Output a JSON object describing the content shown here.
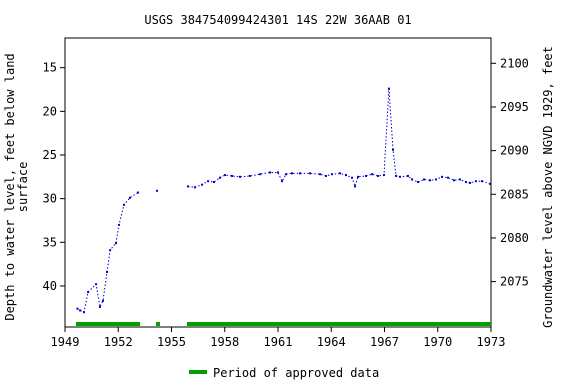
{
  "chart_data": {
    "type": "line",
    "title": "USGS 384754099424301 14S 22W 36AAB 01",
    "ylabel_lines": [
      "Depth to water level, feet below land",
      "surface"
    ],
    "y2label": "Groundwater level above NGVD 1929, feet",
    "x": [
      1949.7,
      1949.85,
      1950.07,
      1950.3,
      1950.75,
      1950.97,
      1951.14,
      1951.37,
      1951.54,
      1951.87,
      1952.04,
      1952.32,
      1952.66,
      1953.11,
      null,
      1954.18,
      null,
      1955.93,
      1956.32,
      1956.72,
      1957.06,
      1957.39,
      1957.73,
      1958.01,
      1958.41,
      1958.86,
      1959.42,
      1959.99,
      1960.55,
      1961.0,
      1961.23,
      1961.45,
      1961.79,
      1962.24,
      1962.8,
      1963.37,
      1963.7,
      1964.04,
      1964.49,
      1964.83,
      1965.17,
      1965.34,
      1965.51,
      1965.96,
      1966.3,
      1966.63,
      1966.97,
      1967.25,
      1967.48,
      1967.65,
      1967.87,
      1968.32,
      1968.55,
      1968.89,
      1969.23,
      1969.56,
      1969.9,
      1970.24,
      1970.58,
      1970.92,
      1971.25,
      1971.59,
      1971.82,
      1972.15,
      1972.49,
      1972.94
    ],
    "series": [
      {
        "color": "#0000cc",
        "values": [
          42.6,
          42.8,
          43.0,
          40.7,
          39.8,
          42.4,
          41.7,
          38.4,
          35.9,
          35.1,
          33.0,
          30.7,
          29.9,
          29.3,
          null,
          29.1,
          null,
          28.6,
          28.7,
          28.4,
          28.0,
          28.1,
          27.6,
          27.3,
          27.4,
          27.5,
          27.4,
          27.2,
          27.0,
          27.0,
          28.0,
          27.2,
          27.1,
          27.1,
          27.1,
          27.2,
          27.4,
          27.2,
          27.1,
          27.3,
          27.6,
          28.6,
          27.5,
          27.4,
          27.2,
          27.4,
          27.3,
          17.4,
          24.4,
          27.4,
          27.5,
          27.4,
          27.8,
          28.1,
          27.8,
          27.9,
          27.8,
          27.5,
          27.6,
          27.9,
          27.8,
          28.1,
          28.2,
          28.0,
          28.0,
          28.3
        ]
      }
    ],
    "xlim": [
      1949,
      1973
    ],
    "xticks": [
      1949,
      1952,
      1955,
      1958,
      1961,
      1964,
      1967,
      1970,
      1973
    ],
    "ylim": [
      44.7,
      11.6
    ],
    "yticks": [
      15,
      20,
      25,
      30,
      35,
      40
    ],
    "y2lim": [
      2069.8,
      2102.9
    ],
    "y2ticks": [
      2075,
      2080,
      2085,
      2090,
      2095,
      2100
    ],
    "approved_periods": {
      "name": "Period of approved data",
      "color": "#00a000",
      "ranges": [
        [
          1949.62,
          1953.23
        ],
        [
          1954.13,
          1954.35
        ],
        [
          1955.87,
          1973
        ]
      ]
    }
  }
}
